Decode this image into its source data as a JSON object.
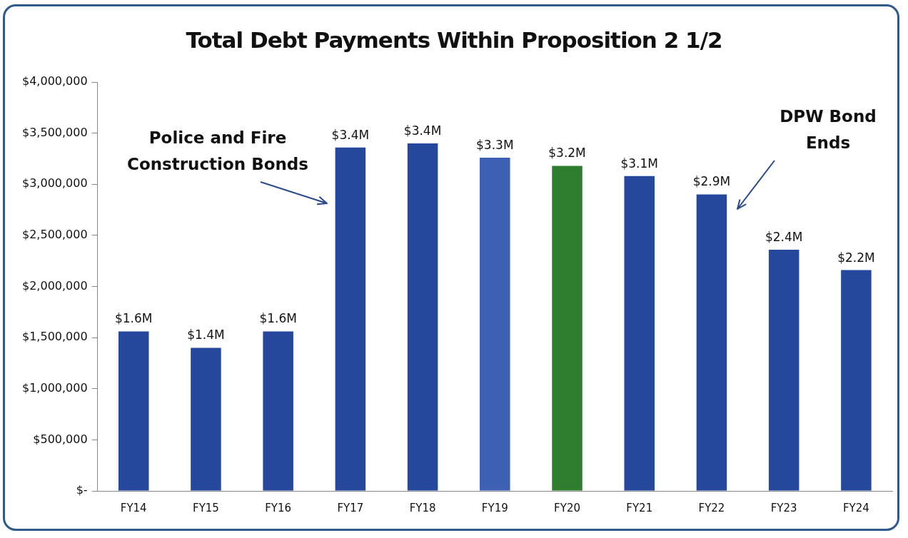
{
  "chart_data": {
    "type": "bar",
    "title": "Total Debt Payments Within Proposition 2 1/2",
    "categories": [
      "FY14",
      "FY15",
      "FY16",
      "FY17",
      "FY18",
      "FY19",
      "FY20",
      "FY21",
      "FY22",
      "FY23",
      "FY24"
    ],
    "values": [
      1560000,
      1400000,
      1560000,
      3360000,
      3400000,
      3260000,
      3180000,
      3080000,
      2900000,
      2360000,
      2160000
    ],
    "colors": [
      "#25479c",
      "#25479c",
      "#25479c",
      "#25479c",
      "#25479c",
      "#3d60b4",
      "#2f7d2f",
      "#25479c",
      "#25479c",
      "#25479c",
      "#25479c"
    ],
    "value_labels": [
      "$1.6M",
      "$1.4M",
      "$1.6M",
      "$3.4M",
      "$3.4M",
      "$3.3M",
      "$3.2M",
      "$3.1M",
      "$2.9M",
      "$2.4M",
      "$2.2M"
    ],
    "ylim": [
      0,
      4000000
    ],
    "yticks": [
      {
        "value": 0,
        "label": "$-"
      },
      {
        "value": 500000,
        "label": "$500,000"
      },
      {
        "value": 1000000,
        "label": "$1,000,000"
      },
      {
        "value": 1500000,
        "label": "$1,500,000"
      },
      {
        "value": 2000000,
        "label": "$2,000,000"
      },
      {
        "value": 2500000,
        "label": "$2,500,000"
      },
      {
        "value": 3000000,
        "label": "$3,000,000"
      },
      {
        "value": 3500000,
        "label": "$3,500,000"
      },
      {
        "value": 4000000,
        "label": "$4,000,000"
      }
    ],
    "grid": false,
    "legend": false,
    "annotations": [
      "Police and Fire Construction Bonds",
      "DPW Bond Ends"
    ]
  }
}
